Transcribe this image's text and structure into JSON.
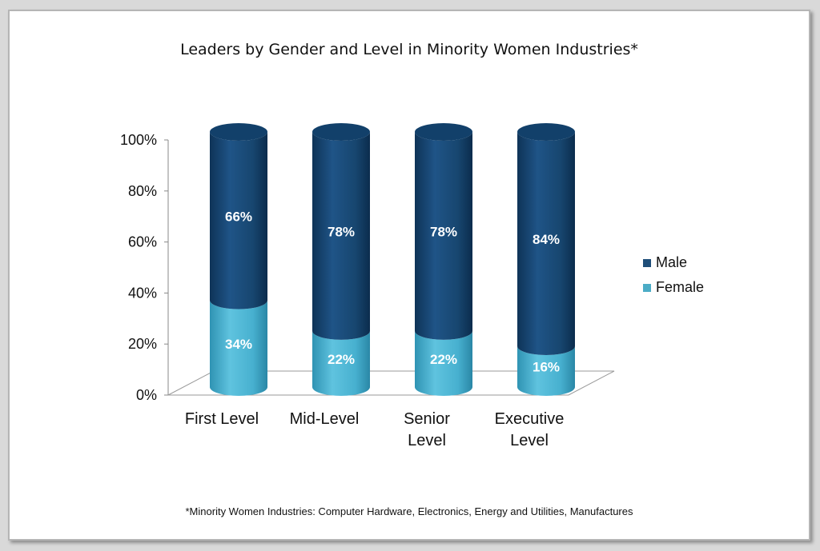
{
  "chart_data": {
    "type": "bar",
    "stacked": true,
    "percent_stacked": true,
    "title": "Leaders by Gender and Level in Minority Women Industries*",
    "categories": [
      [
        "First Level"
      ],
      [
        "Mid-Level"
      ],
      [
        "Senior",
        "Level"
      ],
      [
        "Executive",
        "Level"
      ]
    ],
    "series": [
      {
        "name": "Female",
        "values": [
          34,
          22,
          22,
          16
        ],
        "labels": [
          "34%",
          "22%",
          "22%",
          "16%"
        ],
        "color": "#4bacc6"
      },
      {
        "name": "Male",
        "values": [
          66,
          78,
          78,
          84
        ],
        "labels": [
          "66%",
          "78%",
          "78%",
          "84%"
        ],
        "color": "#1f4e79"
      }
    ],
    "ylim": [
      0,
      100
    ],
    "yticks": [
      "0%",
      "20%",
      "40%",
      "60%",
      "80%",
      "100%"
    ],
    "legend": {
      "position": "right",
      "order": [
        "Male",
        "Female"
      ]
    },
    "bar_shape": "cylinder",
    "grid": false
  },
  "footnote": "*Minority Women Industries: Computer Hardware, Electronics, Energy and Utilities, Manufactures"
}
